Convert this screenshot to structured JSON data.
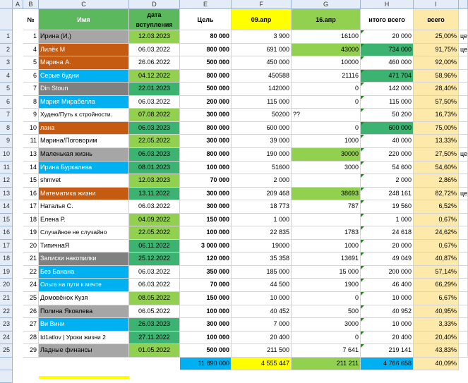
{
  "colors": {
    "green_header": "#5cb85c",
    "yellow": "#ffff00",
    "peach": "#fde9a9",
    "blue": "#00b0f0",
    "light_green": "#92d050",
    "green": "#3cb371",
    "orange": "#c55a11",
    "gray": "#a6a6a6",
    "dark_gray": "#808080",
    "light_gray": "#d9d9d9"
  },
  "column_letters": [
    "A",
    "B",
    "C",
    "D",
    "E",
    "F",
    "G",
    "H",
    "I"
  ],
  "headers": {
    "num": "№",
    "name": "Имя",
    "date": "дата вступления",
    "goal": "Цель",
    "apr09": "09.апр",
    "apr16": "16.апр",
    "total": "итого всего",
    "pct": "всего"
  },
  "rows": [
    {
      "rn": "1",
      "a": "1",
      "name": "Ирина (И,)",
      "name_bg": "gray",
      "date": "12.03.2023",
      "date_bg": "light_green",
      "goal": "80 000",
      "apr09": "3 900",
      "apr16": "16100",
      "apr16_bg": "",
      "total": "20 000",
      "total_bg": "",
      "pct": "25,00%",
      "extra": "це"
    },
    {
      "rn": "2",
      "a": "4",
      "name": "Лилёк М",
      "name_bg": "orange",
      "date": "06.03.2022",
      "date_bg": "",
      "goal": "800 000",
      "apr09": "691 000",
      "apr16": "43000",
      "apr16_bg": "light_green",
      "total": "734 000",
      "total_bg": "green",
      "pct": "91,75%",
      "extra": "це"
    },
    {
      "rn": "3",
      "a": "5",
      "name": "Марина А.",
      "name_bg": "orange",
      "date": "26.06.2022",
      "date_bg": "",
      "goal": "500 000",
      "apr09": "450 000",
      "apr16": "10000",
      "apr16_bg": "",
      "total": "460 000",
      "total_bg": "",
      "pct": "92,00%",
      "extra": ""
    },
    {
      "rn": "4",
      "a": "6",
      "name": "Серые будни",
      "name_bg": "blue",
      "date": "04.12.2022",
      "date_bg": "light_green",
      "goal": "800 000",
      "apr09": "450588",
      "apr16": "21116",
      "apr16_bg": "",
      "total": "471 704",
      "total_bg": "green",
      "pct": "58,96%",
      "extra": ""
    },
    {
      "rn": "5",
      "a": "7",
      "name": "Din Stoun",
      "name_bg": "dark_gray",
      "date": "22.01.2023",
      "date_bg": "green",
      "goal": "500 000",
      "apr09": "142000",
      "apr16": "0",
      "apr16_bg": "",
      "total": "142 000",
      "total_bg": "",
      "pct": "28,40%",
      "extra": ""
    },
    {
      "rn": "6",
      "a": "8",
      "name": "Мария Мирабелла",
      "name_bg": "blue",
      "date": "06.03.2022",
      "date_bg": "",
      "goal": "200 000",
      "apr09": "115 000",
      "apr16": "0",
      "apr16_bg": "",
      "total": "115 000",
      "total_bg": "",
      "pct": "57,50%",
      "extra": ""
    },
    {
      "rn": "7",
      "a": "9",
      "name": "Худею/Путь к стройности.",
      "name_bg": "",
      "date": "07.08.2022",
      "date_bg": "light_green",
      "goal": "300 000",
      "apr09": "50200",
      "apr16": "",
      "apr16_bg": "",
      "total": "50 200",
      "total_bg": "",
      "pct": "16,73%",
      "extra": "",
      "note": "??"
    },
    {
      "rn": "8",
      "a": "10",
      "name": "лана",
      "name_bg": "orange",
      "date": "06.03.2023",
      "date_bg": "green",
      "goal": "800 000",
      "apr09": "600 000",
      "apr16": "0",
      "apr16_bg": "",
      "total": "600 000",
      "total_bg": "green",
      "pct": "75,00%",
      "extra": ""
    },
    {
      "rn": "9",
      "a": "11",
      "name": "Марина/Поговорим",
      "name_bg": "",
      "date": "22.05.2022",
      "date_bg": "light_green",
      "goal": "300 000",
      "apr09": "39 000",
      "apr16": "1000",
      "apr16_bg": "",
      "total": "40 000",
      "total_bg": "",
      "pct": "13,33%",
      "extra": ""
    },
    {
      "rn": "10",
      "a": "13",
      "name": "Маленькая жизнь",
      "name_bg": "gray",
      "date": "06.03.2023",
      "date_bg": "green",
      "goal": "800 000",
      "apr09": "190 000",
      "apr16": "30000",
      "apr16_bg": "light_green",
      "total": "220 000",
      "total_bg": "",
      "pct": "27,50%",
      "extra": "це"
    },
    {
      "rn": "11",
      "a": "14",
      "name": "Ирина Буркалева",
      "name_bg": "blue",
      "date": "08.01.2023",
      "date_bg": "green",
      "goal": "100 000",
      "apr09": "51600",
      "apr16": "3000",
      "apr16_bg": "",
      "total": "54 600",
      "total_bg": "",
      "pct": "54,60%",
      "extra": ""
    },
    {
      "rn": "12",
      "a": "15",
      "name": "shmvet",
      "name_bg": "",
      "date": "12.03.2023",
      "date_bg": "light_green",
      "goal": "70 000",
      "apr09": "2 000",
      "apr16": "",
      "apr16_bg": "",
      "total": "2 000",
      "total_bg": "",
      "pct": "2,86%",
      "extra": ""
    },
    {
      "rn": "13",
      "a": "16",
      "name": "Математика жизни",
      "name_bg": "orange",
      "date": "13.11.2022",
      "date_bg": "green",
      "goal": "300 000",
      "apr09": "209 468",
      "apr16": "38693",
      "apr16_bg": "light_green",
      "total": "248 161",
      "total_bg": "",
      "pct": "82,72%",
      "extra": "це"
    },
    {
      "rn": "14",
      "a": "17",
      "name": "Наталья С.",
      "name_bg": "",
      "date": "06.03.2022",
      "date_bg": "",
      "goal": "300 000",
      "apr09": "18 773",
      "apr16": "787",
      "apr16_bg": "",
      "total": "19 560",
      "total_bg": "",
      "pct": "6,52%",
      "extra": ""
    },
    {
      "rn": "15",
      "a": "18",
      "name": "Елена Р.",
      "name_bg": "",
      "date": "04.09.2022",
      "date_bg": "light_green",
      "goal": "150 000",
      "apr09": "1 000",
      "apr16": "",
      "apr16_bg": "",
      "total": "1 000",
      "total_bg": "",
      "pct": "0,67%",
      "extra": ""
    },
    {
      "rn": "16",
      "a": "19",
      "name": " Случайное не случайно",
      "name_bg": "",
      "date": "22.05.2022",
      "date_bg": "light_green",
      "goal": "100 000",
      "apr09": "22 835",
      "apr16": "1783",
      "apr16_bg": "",
      "total": "24 618",
      "total_bg": "",
      "pct": "24,62%",
      "extra": ""
    },
    {
      "rn": "17",
      "a": "20",
      "name": "ТипичнаЯ",
      "name_bg": "",
      "date": "06.11.2022",
      "date_bg": "green",
      "goal": "3 000 000",
      "apr09": "19000",
      "apr16": "1000",
      "apr16_bg": "",
      "total": "20 000",
      "total_bg": "",
      "pct": "0,67%",
      "extra": ""
    },
    {
      "rn": "18",
      "a": "21",
      "name": "Записки накопилки",
      "name_bg": "dark_gray",
      "date": "25.12.2022",
      "date_bg": "green",
      "goal": "120 000",
      "apr09": "35 358",
      "apr16": "13691",
      "apr16_bg": "",
      "total": "49 049",
      "total_bg": "",
      "pct": "40,87%",
      "extra": ""
    },
    {
      "rn": "19",
      "a": "22",
      "name": "Без Банана",
      "name_bg": "blue",
      "date": "06.03.2022",
      "date_bg": "",
      "goal": "350 000",
      "apr09": "185 000",
      "apr16": "15 000",
      "apr16_bg": "",
      "total": "200 000",
      "total_bg": "",
      "pct": "57,14%",
      "extra": ""
    },
    {
      "rn": "20",
      "a": "24",
      "name": "Ольга на пути к мечте",
      "name_bg": "blue",
      "date": "06.03.2022",
      "date_bg": "",
      "goal": "70 000",
      "apr09": "44 500",
      "apr16": "1900",
      "apr16_bg": "",
      "total": "46 400",
      "total_bg": "",
      "pct": "66,29%",
      "extra": ""
    },
    {
      "rn": "21",
      "a": "25",
      "name": " Домовёнок Кузя",
      "name_bg": "",
      "date": "08.05.2022",
      "date_bg": "light_green",
      "goal": "150 000",
      "apr09": "10 000",
      "apr16": "0",
      "apr16_bg": "",
      "total": "10 000",
      "total_bg": "",
      "pct": "6,67%",
      "extra": ""
    },
    {
      "rn": "22",
      "a": "26",
      "name": "Полина Яковлева",
      "name_bg": "gray",
      "date": "06.05.2022",
      "date_bg": "",
      "goal": "100 000",
      "apr09": "40 452",
      "apr16": "500",
      "apr16_bg": "",
      "total": "40 952",
      "total_bg": "",
      "pct": "40,95%",
      "extra": ""
    },
    {
      "rn": "23",
      "a": "27",
      "name": "Ви Вини",
      "name_bg": "blue",
      "date": "26.03.2023",
      "date_bg": "green",
      "goal": "300 000",
      "apr09": "7 000",
      "apr16": "3000",
      "apr16_bg": "",
      "total": "10 000",
      "total_bg": "",
      "pct": "3,33%",
      "extra": ""
    },
    {
      "rn": "24",
      "a": "28",
      "name": "Id1atlov | Уроки жизни 2",
      "name_bg": "",
      "date": "27.11.2022",
      "date_bg": "green",
      "goal": "100 000",
      "apr09": "20 400",
      "apr16": "0",
      "apr16_bg": "",
      "total": "20 400",
      "total_bg": "",
      "pct": "20,40%",
      "extra": ""
    },
    {
      "rn": "25",
      "a": "29",
      "name": "Ладные финансы",
      "name_bg": "gray",
      "date": "01.05.2022",
      "date_bg": "light_green",
      "goal": "500 000",
      "apr09": "211 500",
      "apr16": "7 641",
      "apr16_bg": "",
      "total": "219 141",
      "total_bg": "",
      "pct": "43,83%",
      "extra": ""
    }
  ],
  "totals": {
    "goal": "11 890 000",
    "apr09": "4 555 447",
    "apr16": "211 211",
    "total": "4 766 658",
    "pct": "40,09%"
  }
}
